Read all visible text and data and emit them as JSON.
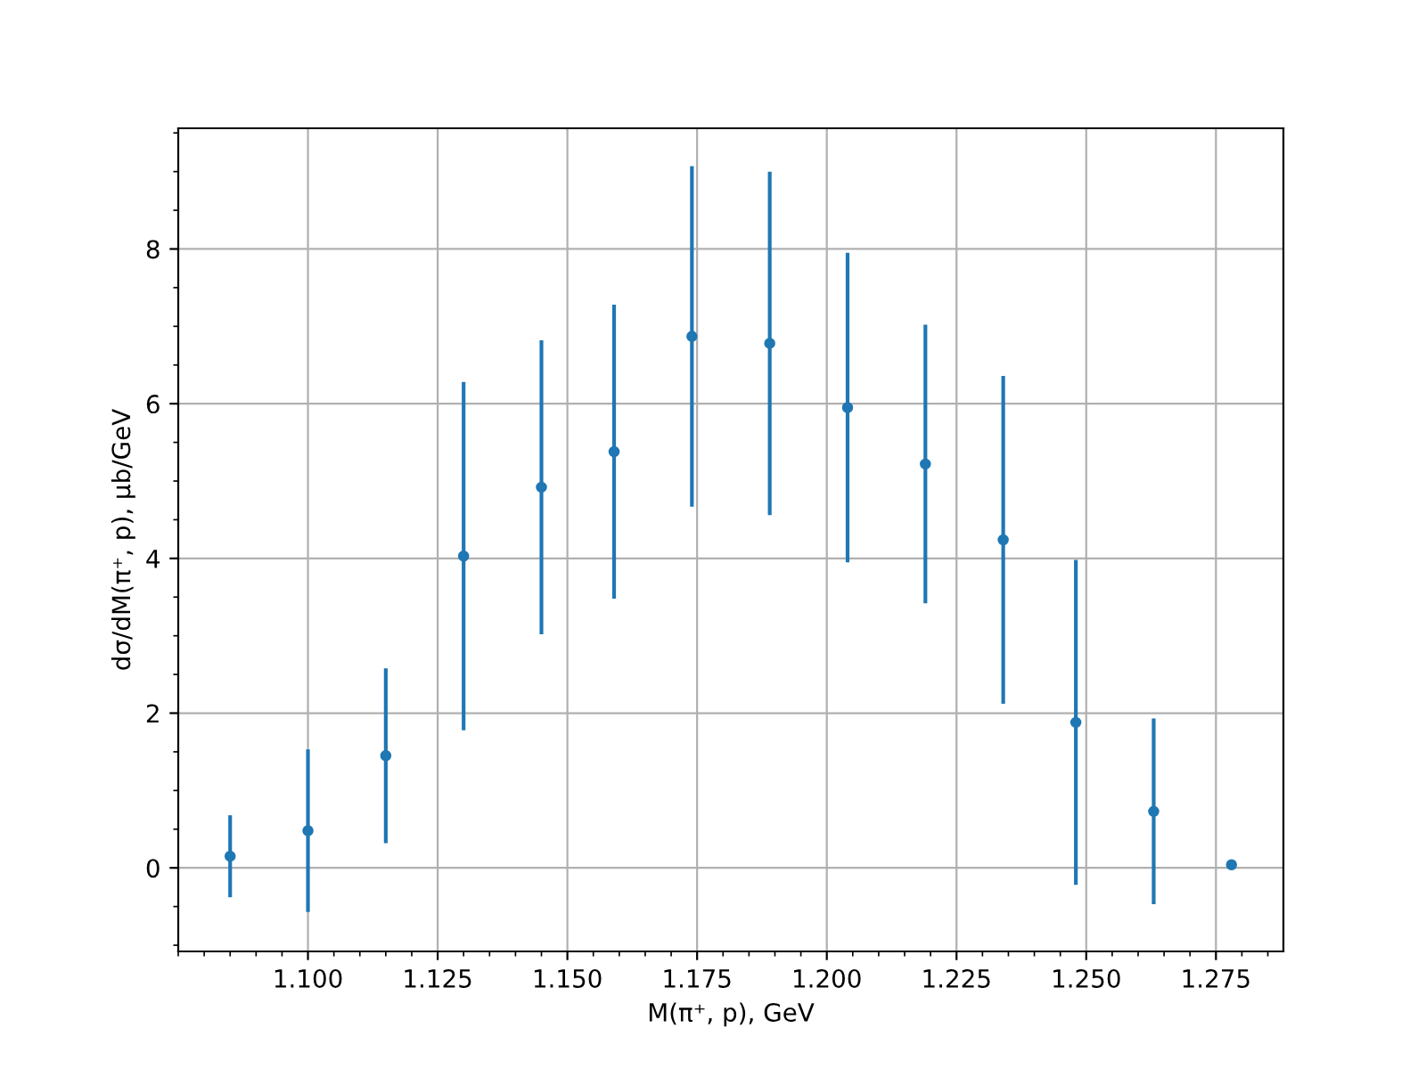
{
  "chart_data": {
    "type": "scatter",
    "xlabel": "M(π⁺, p), GeV",
    "ylabel": "dσ/dM(π⁺, p), μb/GeV",
    "x": [
      1.085,
      1.1,
      1.115,
      1.13,
      1.145,
      1.159,
      1.174,
      1.189,
      1.204,
      1.219,
      1.234,
      1.248,
      1.263,
      1.278
    ],
    "series": [
      {
        "color": "#1f77b4",
        "values": [
          0.15,
          0.48,
          1.45,
          4.03,
          4.92,
          5.38,
          6.87,
          6.78,
          5.95,
          5.22,
          4.24,
          1.88,
          0.73,
          0.04
        ],
        "errors": [
          0.53,
          1.05,
          1.13,
          2.25,
          1.9,
          1.9,
          2.2,
          2.22,
          2.0,
          1.8,
          2.12,
          2.1,
          1.2,
          null
        ]
      }
    ],
    "xlim": [
      1.075,
      1.288
    ],
    "xticks": [
      {
        "value": 1.1,
        "label": "1.100"
      },
      {
        "value": 1.125,
        "label": "1.125"
      },
      {
        "value": 1.15,
        "label": "1.150"
      },
      {
        "value": 1.175,
        "label": "1.175"
      },
      {
        "value": 1.2,
        "label": "1.200"
      },
      {
        "value": 1.225,
        "label": "1.225"
      },
      {
        "value": 1.25,
        "label": "1.250"
      },
      {
        "value": 1.275,
        "label": "1.275"
      }
    ],
    "ylim": [
      -1.08,
      9.56
    ],
    "yticks": [
      0,
      2,
      4,
      6,
      8
    ],
    "grid": true,
    "marker": "circle"
  }
}
